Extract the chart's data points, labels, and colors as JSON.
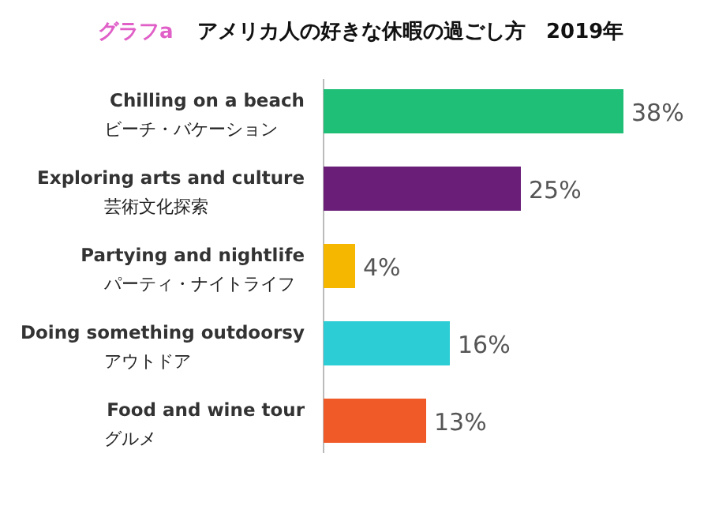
{
  "chart_data": {
    "type": "bar",
    "orientation": "horizontal",
    "title": "アメリカ人の好きな休暇の過ごし方　2019年",
    "annotations": [
      "グラフa"
    ],
    "categories": [
      "Chilling on a beach\nビーチ・バケーション",
      "Exploring arts and culture\n芸術文化探索",
      "Partying and nightlife\nパーティ・ナイトライフ",
      "Doing something outdoorsy\nアウトドア",
      "Food and wine tour\nグルメ"
    ],
    "values": [
      38,
      25,
      4,
      16,
      13
    ],
    "colors": [
      "#1fbf77",
      "#6a1e78",
      "#f5b700",
      "#2dcdd5",
      "#f05a28"
    ],
    "value_labels": [
      "38%",
      "25%",
      "4%",
      "16%",
      "13%"
    ]
  }
}
